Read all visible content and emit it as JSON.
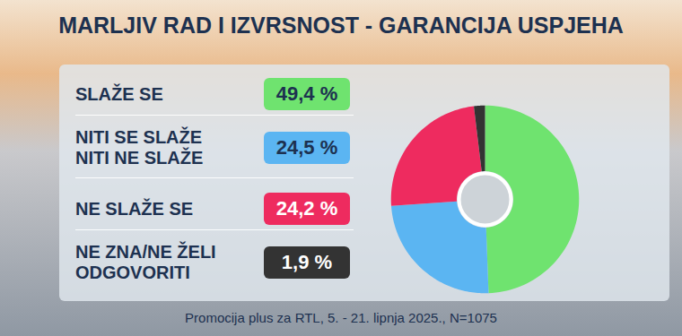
{
  "chart_data": {
    "type": "pie",
    "title": "MARLJIV RAD I IZVRSNOST - GARANCIJA USPJEHA",
    "categories": [
      "SLAŽE SE",
      "NITI SE SLAŽE\nNITI  NE SLAŽE",
      "NE SLAŽE SE",
      "NE ZNA/NE ŽELI\nODGOVORITI"
    ],
    "values": [
      49.4,
      24.5,
      24.2,
      1.9
    ],
    "value_labels": [
      "49,4 %",
      "24,5 %",
      "24,2 %",
      "1,9 %"
    ],
    "colors": [
      "#6fe36f",
      "#5bb5f2",
      "#ee2b5f",
      "#333333"
    ],
    "data_labels": true,
    "caption": "Promocija plus za RTL, 5. - 21. lipnja 2025., N=1075"
  }
}
